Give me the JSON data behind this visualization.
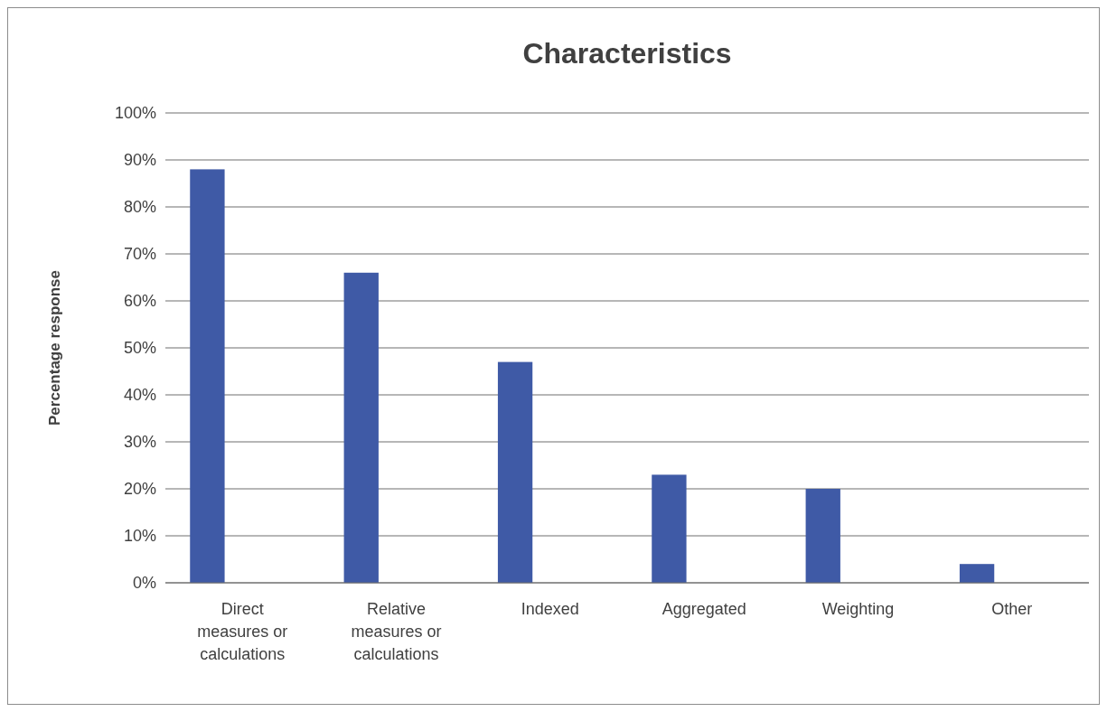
{
  "chart_data": {
    "type": "bar",
    "title": "Characteristics",
    "ylabel": "Percentage response",
    "categories": [
      "Direct measures or calculations",
      "Relative measures or calculations",
      "Indexed",
      "Aggregated",
      "Weighting",
      "Other"
    ],
    "values": [
      88,
      66,
      47,
      23,
      20,
      4
    ],
    "color": "#3f5aa6",
    "ylim": [
      0,
      100
    ],
    "yticks": [
      {
        "value": 0,
        "label": "0%"
      },
      {
        "value": 10,
        "label": "10%"
      },
      {
        "value": 20,
        "label": "20%"
      },
      {
        "value": 30,
        "label": "30%"
      },
      {
        "value": 40,
        "label": "40%"
      },
      {
        "value": 50,
        "label": "50%"
      },
      {
        "value": 60,
        "label": "60%"
      },
      {
        "value": 70,
        "label": "70%"
      },
      {
        "value": 80,
        "label": "80%"
      },
      {
        "value": 90,
        "label": "90%"
      },
      {
        "value": 100,
        "label": "100%"
      }
    ],
    "grid": "y"
  }
}
